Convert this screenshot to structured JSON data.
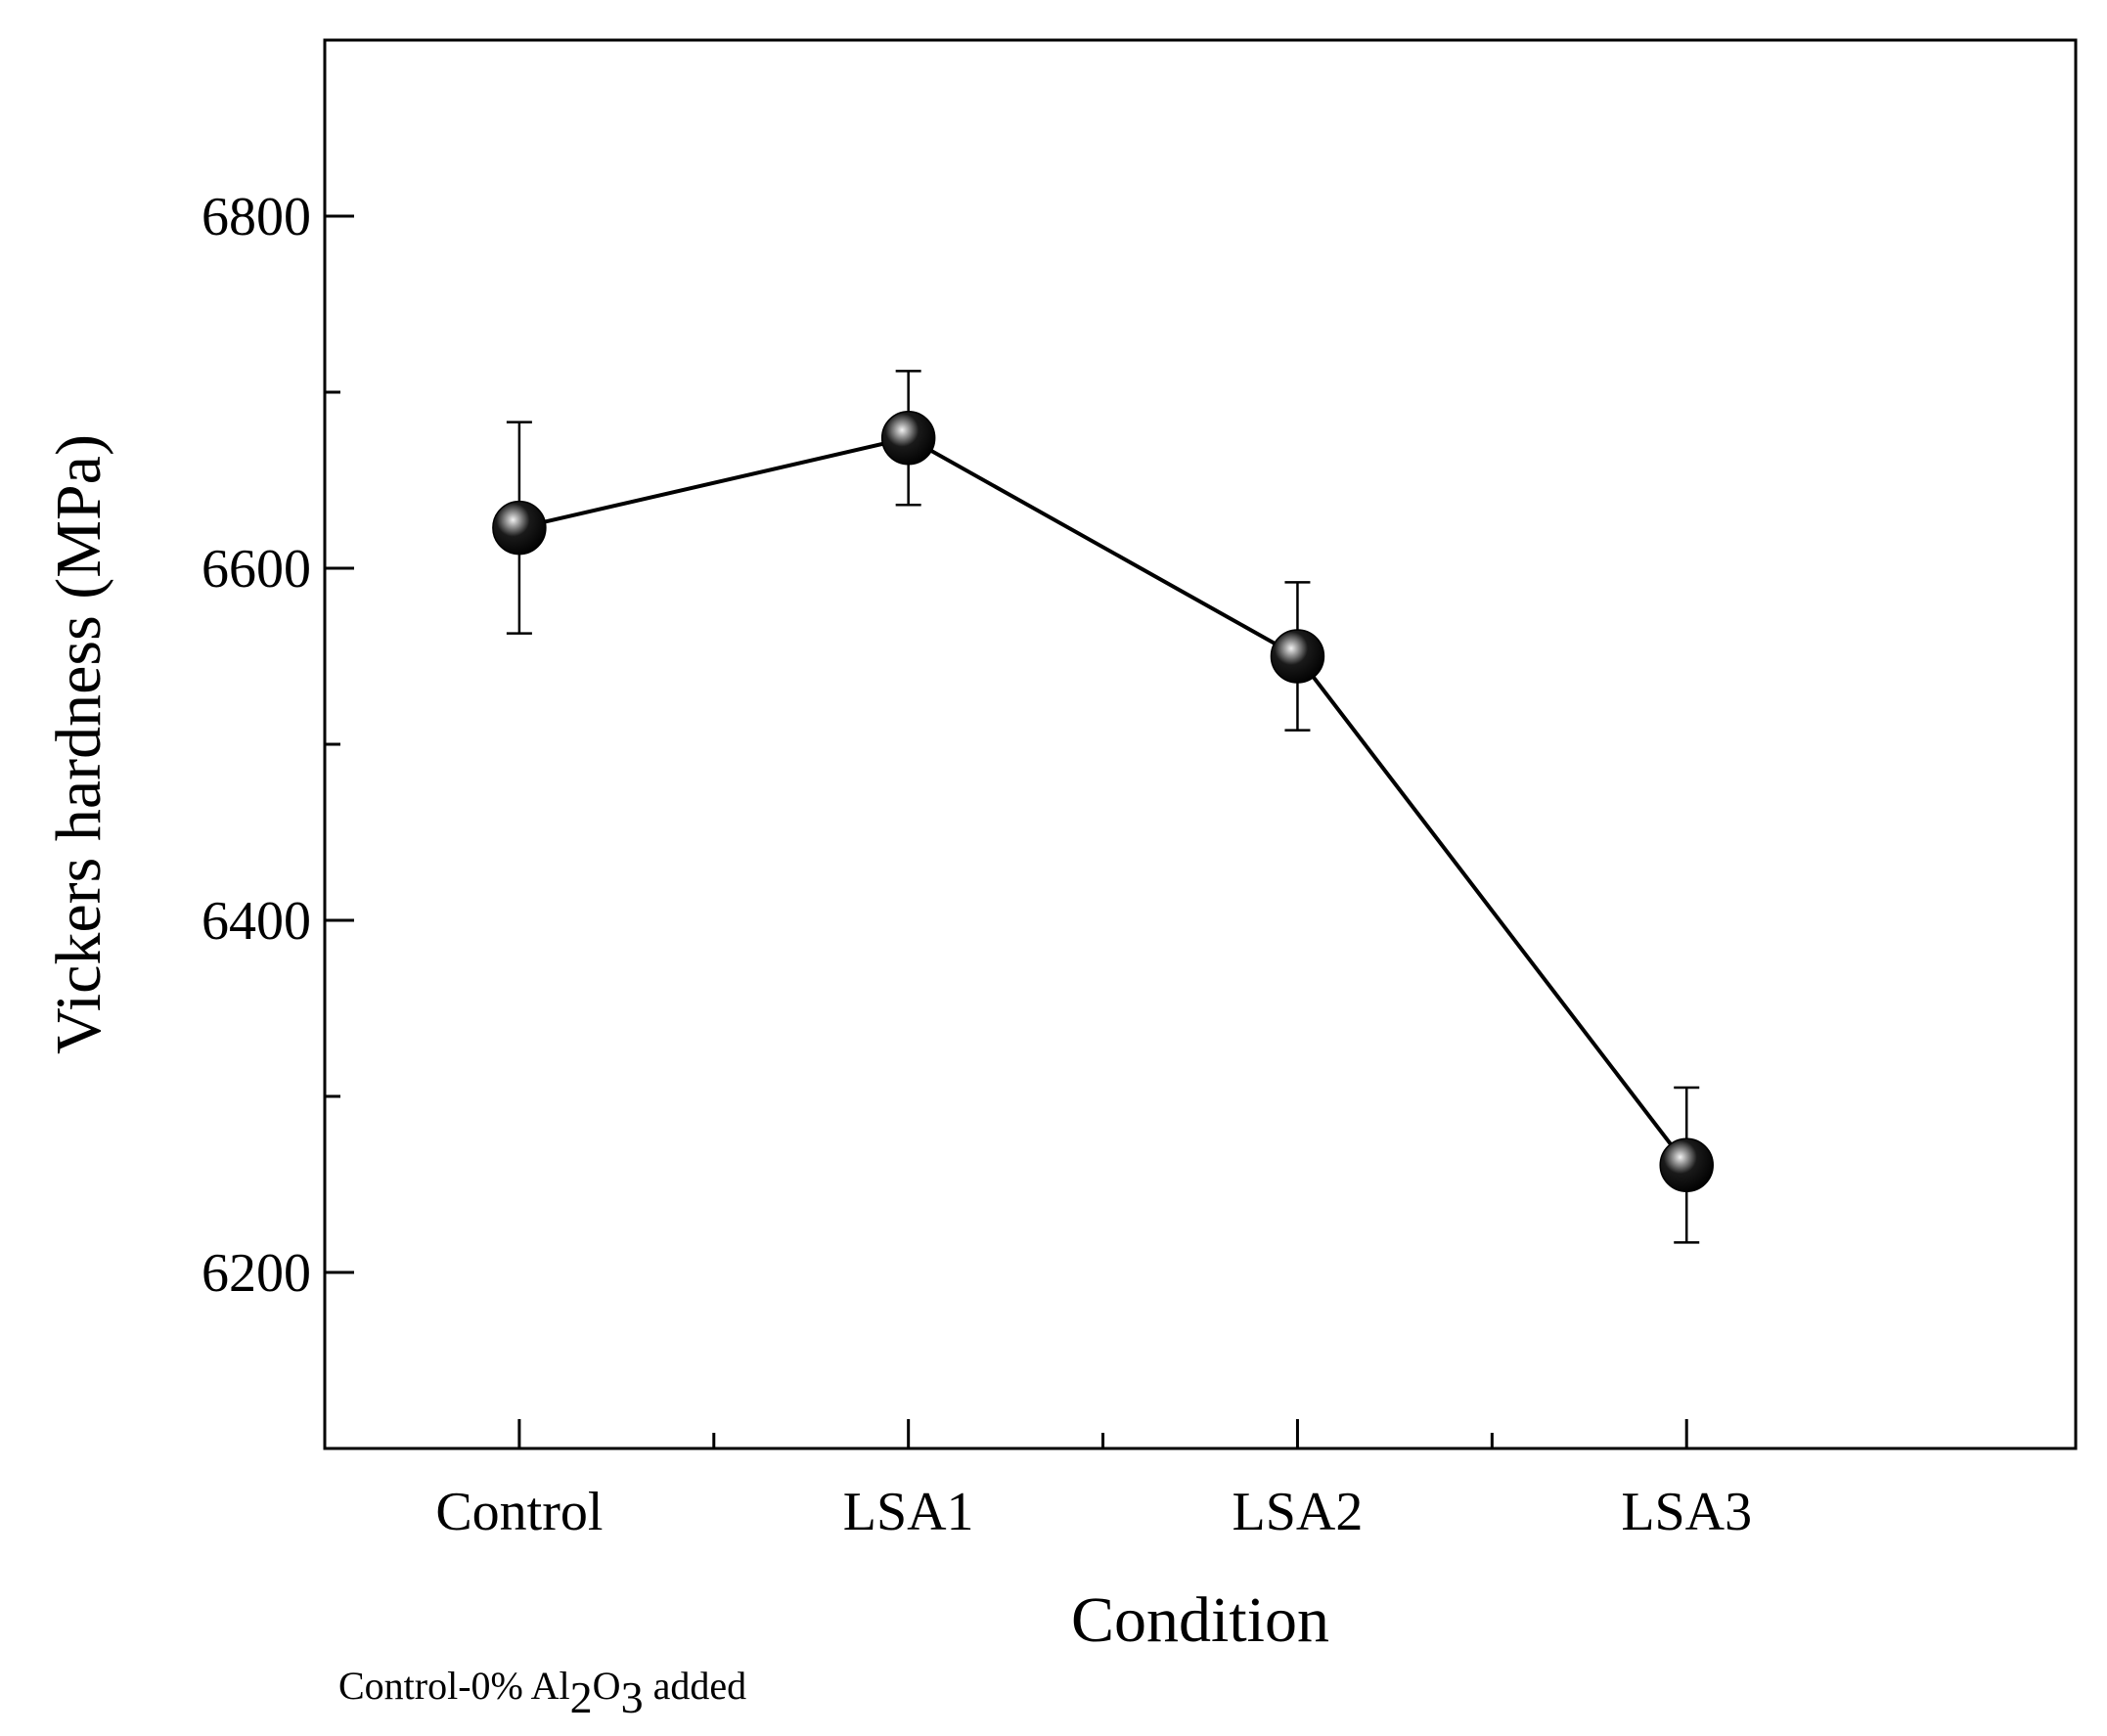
{
  "chart_data": {
    "type": "line",
    "title": "",
    "xlabel": "Condition",
    "ylabel": "Vickers hardness (MPa)",
    "categories": [
      "Control",
      "LSA1",
      "LSA2",
      "LSA3"
    ],
    "series": [
      {
        "name": "Vickers hardness",
        "values": [
          6623,
          6674,
          6550,
          6261
        ],
        "error": [
          60,
          38,
          42,
          44
        ]
      }
    ],
    "ylim": [
      6100,
      6900
    ],
    "yticks": [
      6200,
      6400,
      6600,
      6800
    ],
    "yticks_labels": [
      "6200",
      "6400",
      "6600",
      "6800"
    ],
    "grid": false,
    "legend": "none",
    "footnote": {
      "prefix": "Control-0% Al",
      "sub1": "2",
      "mid": "O",
      "sub2": "3",
      "suffix": " added"
    }
  }
}
